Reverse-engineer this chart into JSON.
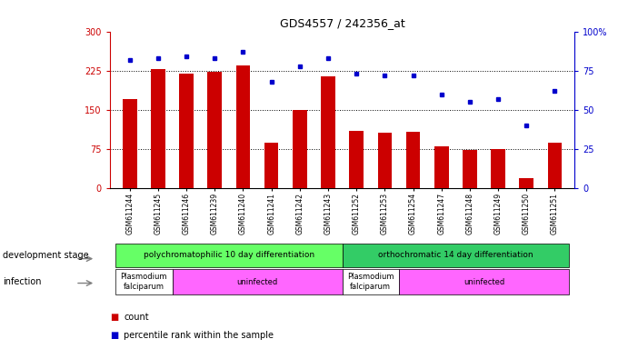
{
  "title": "GDS4557 / 242356_at",
  "samples": [
    "GSM611244",
    "GSM611245",
    "GSM611246",
    "GSM611239",
    "GSM611240",
    "GSM611241",
    "GSM611242",
    "GSM611243",
    "GSM611252",
    "GSM611253",
    "GSM611254",
    "GSM611247",
    "GSM611248",
    "GSM611249",
    "GSM611250",
    "GSM611251"
  ],
  "bar_values": [
    170,
    228,
    220,
    222,
    235,
    88,
    150,
    215,
    110,
    107,
    108,
    80,
    74,
    75,
    20,
    88
  ],
  "dot_values": [
    82,
    83,
    84,
    83,
    87,
    68,
    78,
    83,
    73,
    72,
    72,
    60,
    55,
    57,
    40,
    62
  ],
  "bar_color": "#cc0000",
  "dot_color": "#0000cc",
  "ylim_left": [
    0,
    300
  ],
  "ylim_right": [
    0,
    100
  ],
  "yticks_left": [
    0,
    75,
    150,
    225,
    300
  ],
  "yticks_right": [
    0,
    25,
    50,
    75,
    100
  ],
  "yticklabels_right": [
    "0",
    "25",
    "50",
    "75",
    "100%"
  ],
  "hlines": [
    75,
    150,
    225
  ],
  "bg_color": "#ffffff",
  "plot_bg": "#ffffff",
  "dev_stage_groups": [
    {
      "label": "polychromatophilic 10 day differentiation",
      "start": 0,
      "end": 8,
      "color": "#66ff66"
    },
    {
      "label": "orthochromatic 14 day differentiation",
      "start": 8,
      "end": 16,
      "color": "#33cc66"
    }
  ],
  "infection_groups": [
    {
      "label": "Plasmodium\nfalciparum",
      "start": 0,
      "end": 2,
      "color": "#ffffff"
    },
    {
      "label": "uninfected",
      "start": 2,
      "end": 8,
      "color": "#ff66ff"
    },
    {
      "label": "Plasmodium\nfalciparum",
      "start": 8,
      "end": 10,
      "color": "#ffffff"
    },
    {
      "label": "uninfected",
      "start": 10,
      "end": 16,
      "color": "#ff66ff"
    }
  ],
  "legend_count_color": "#cc0000",
  "legend_dot_color": "#0000cc",
  "row_label_dev": "development stage",
  "row_label_inf": "infection"
}
